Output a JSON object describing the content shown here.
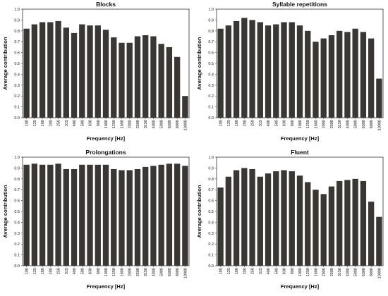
{
  "chart_data": [
    {
      "type": "bar",
      "title": "Blocks",
      "xlabel": "Frequency [Hz]",
      "ylabel": "Average contribution",
      "ylim": [
        0,
        1.0
      ],
      "yticks": [
        "0.0",
        "0.1",
        "0.2",
        "0.3",
        "0.4",
        "0.5",
        "0.6",
        "0.7",
        "0.8",
        "0.9",
        "1.0"
      ],
      "categories": [
        "100",
        "125",
        "160",
        "200",
        "250",
        "315",
        "400",
        "500",
        "630",
        "800",
        "1000",
        "1250",
        "1600",
        "2000",
        "2500",
        "3150",
        "4000",
        "5000",
        "6300",
        "8000",
        "10000"
      ],
      "values": [
        0.82,
        0.86,
        0.88,
        0.88,
        0.89,
        0.83,
        0.78,
        0.86,
        0.85,
        0.85,
        0.81,
        0.74,
        0.69,
        0.69,
        0.75,
        0.76,
        0.75,
        0.68,
        0.65,
        0.56,
        0.2
      ],
      "bar_color": "#3a3633",
      "grid": false
    },
    {
      "type": "bar",
      "title": "Syllable repetitions",
      "xlabel": "Frequency [Hz]",
      "ylabel": "Average contribution",
      "ylim": [
        0,
        1.0
      ],
      "yticks": [
        "0.0",
        "0.1",
        "0.2",
        "0.3",
        "0.4",
        "0.5",
        "0.6",
        "0.7",
        "0.8",
        "0.9",
        "1.0"
      ],
      "categories": [
        "100",
        "125",
        "160",
        "200",
        "250",
        "315",
        "400",
        "500",
        "630",
        "800",
        "1000",
        "1250",
        "1600",
        "2000",
        "2500",
        "3150",
        "4000",
        "5000",
        "6300",
        "8000",
        "10000"
      ],
      "values": [
        0.82,
        0.85,
        0.89,
        0.92,
        0.9,
        0.88,
        0.85,
        0.86,
        0.88,
        0.88,
        0.85,
        0.8,
        0.7,
        0.73,
        0.76,
        0.8,
        0.79,
        0.82,
        0.79,
        0.73,
        0.36
      ],
      "bar_color": "#3a3633",
      "grid": false
    },
    {
      "type": "bar",
      "title": "Prolongations",
      "xlabel": "Frequency [Hz]",
      "ylabel": "Average contribution",
      "ylim": [
        0,
        1.0
      ],
      "yticks": [
        "0.0",
        "0.1",
        "0.2",
        "0.3",
        "0.4",
        "0.5",
        "0.6",
        "0.7",
        "0.8",
        "0.9",
        "1.0"
      ],
      "categories": [
        "100",
        "125",
        "160",
        "200",
        "250",
        "315",
        "400",
        "500",
        "630",
        "800",
        "1000",
        "1250",
        "1600",
        "2000",
        "2500",
        "3150",
        "4000",
        "5000",
        "6300",
        "8000",
        "10000"
      ],
      "values": [
        0.93,
        0.94,
        0.93,
        0.93,
        0.94,
        0.89,
        0.89,
        0.93,
        0.93,
        0.93,
        0.93,
        0.89,
        0.88,
        0.88,
        0.89,
        0.91,
        0.92,
        0.93,
        0.94,
        0.94,
        0.92
      ],
      "bar_color": "#3a3633",
      "grid": false
    },
    {
      "type": "bar",
      "title": "Fluent",
      "xlabel": "Frequency [Hz]",
      "ylabel": "Average contribution",
      "ylim": [
        0,
        1.0
      ],
      "yticks": [
        "0.0",
        "0.1",
        "0.2",
        "0.3",
        "0.4",
        "0.5",
        "0.6",
        "0.7",
        "0.8",
        "0.9",
        "1.0"
      ],
      "categories": [
        "100",
        "125",
        "160",
        "200",
        "250",
        "315",
        "400",
        "500",
        "630",
        "800",
        "1000",
        "1250",
        "1600",
        "2000",
        "2500",
        "3150",
        "4000",
        "5000",
        "6300",
        "8000",
        "10000"
      ],
      "values": [
        0.72,
        0.82,
        0.88,
        0.9,
        0.89,
        0.82,
        0.85,
        0.87,
        0.88,
        0.87,
        0.83,
        0.77,
        0.7,
        0.66,
        0.73,
        0.78,
        0.79,
        0.8,
        0.78,
        0.59,
        0.45
      ],
      "bar_color": "#3a3633",
      "grid": false
    }
  ]
}
